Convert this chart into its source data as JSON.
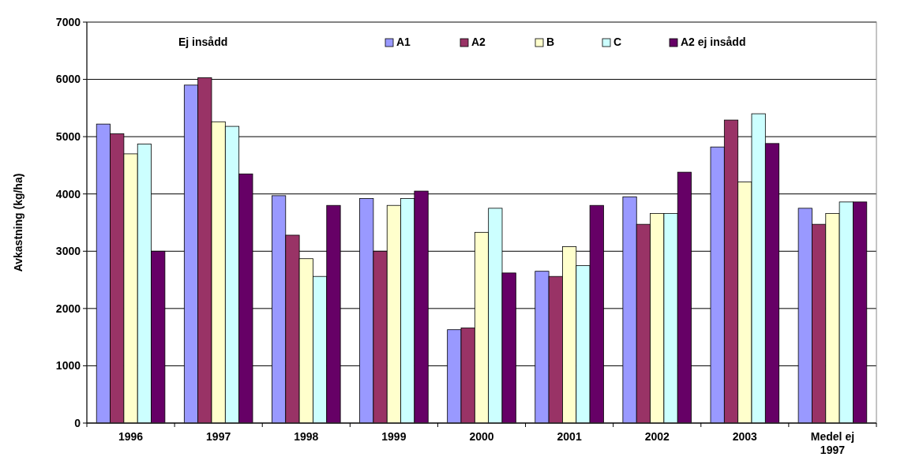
{
  "chart_data": {
    "type": "bar",
    "ylabel": "Avkastning (kg/ha)",
    "annotations": [
      "Ej insådd"
    ],
    "categories": [
      "1996",
      "1997",
      "1998",
      "1999",
      "2000",
      "2001",
      "2002",
      "2003",
      "Medel ej 1997"
    ],
    "series": [
      {
        "name": "A1",
        "color": "#9999ff",
        "values": [
          5220,
          5900,
          3970,
          3920,
          1630,
          2650,
          3950,
          4820,
          3750
        ]
      },
      {
        "name": "A2",
        "color": "#993366",
        "values": [
          5050,
          6030,
          3280,
          3000,
          1660,
          2560,
          3470,
          5290,
          3470
        ]
      },
      {
        "name": "B",
        "color": "#ffffcc",
        "values": [
          4700,
          5260,
          2870,
          3800,
          3330,
          3080,
          3660,
          4210,
          3660
        ]
      },
      {
        "name": "C",
        "color": "#ccffff",
        "values": [
          4870,
          5180,
          2560,
          3920,
          3750,
          2750,
          3660,
          5400,
          3860
        ]
      },
      {
        "name": "A2 ej insådd",
        "color": "#660066",
        "values": [
          3000,
          4350,
          3800,
          4050,
          2620,
          3800,
          4380,
          4880,
          3860
        ]
      }
    ],
    "ylim": [
      0,
      7000
    ],
    "yticks": [
      0,
      1000,
      2000,
      3000,
      4000,
      5000,
      6000,
      7000
    ],
    "grid": "y",
    "legend": "top"
  }
}
